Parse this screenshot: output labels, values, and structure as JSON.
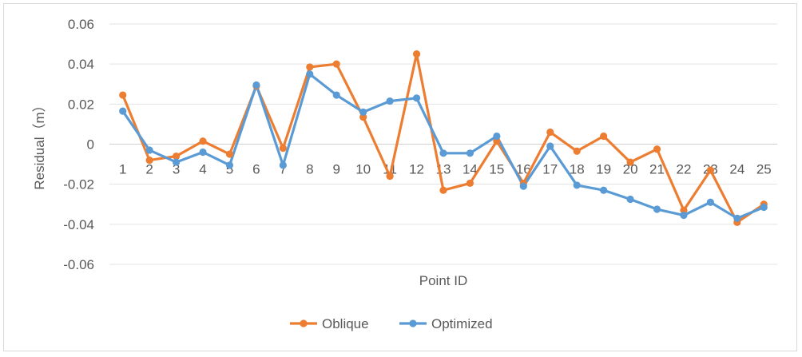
{
  "chart_data": {
    "type": "line",
    "title": "",
    "xlabel": "Point ID",
    "ylabel": "Residual（m）",
    "x": [
      "1",
      "2",
      "3",
      "4",
      "5",
      "6",
      "7",
      "8",
      "9",
      "10",
      "11",
      "12",
      "13",
      "14",
      "15",
      "16",
      "17",
      "18",
      "19",
      "20",
      "21",
      "22",
      "23",
      "24",
      "25"
    ],
    "ylim": [
      -0.06,
      0.06
    ],
    "yticks": [
      0.06,
      0.04,
      0.02,
      0,
      -0.02,
      -0.04,
      -0.06
    ],
    "ytick_labels": [
      "0.06",
      "0.04",
      "0.02",
      "0",
      "-0.02",
      "-0.04",
      "-0.06"
    ],
    "grid": true,
    "legend": "bottom",
    "series": [
      {
        "name": "Oblique",
        "color": "#ed7d31",
        "values": [
          0.0245,
          -0.008,
          -0.006,
          0.0015,
          -0.005,
          0.029,
          -0.002,
          0.0385,
          0.04,
          0.0135,
          -0.016,
          0.045,
          -0.023,
          -0.0195,
          0.0015,
          -0.0195,
          0.006,
          -0.0035,
          0.004,
          -0.009,
          -0.0025,
          -0.033,
          -0.013,
          -0.039,
          -0.03
        ]
      },
      {
        "name": "Optimized",
        "color": "#5b9bd5",
        "values": [
          0.0165,
          -0.003,
          -0.009,
          -0.004,
          -0.0105,
          0.0295,
          -0.0105,
          0.035,
          0.0245,
          0.016,
          0.0215,
          0.023,
          -0.0045,
          -0.0045,
          0.004,
          -0.021,
          -0.001,
          -0.0205,
          -0.023,
          -0.0275,
          -0.0325,
          -0.0355,
          -0.029,
          -0.037,
          -0.0315
        ]
      }
    ]
  }
}
